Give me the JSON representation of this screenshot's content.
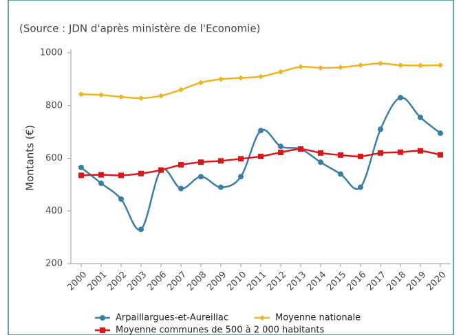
{
  "chart_data": {
    "type": "line",
    "title": "(Source : JDN d'après ministère de l'Economie)",
    "y_label": "Montants (€)",
    "categories": [
      "2000",
      "2001",
      "2002",
      "2003",
      "2006",
      "2007",
      "2008",
      "2009",
      "2010",
      "2011",
      "2012",
      "2013",
      "2014",
      "2015",
      "2016",
      "2017",
      "2018",
      "2019",
      "2020"
    ],
    "series": [
      {
        "name": "Arpaillargues-et-Aureillac",
        "color": "#3a7fa3",
        "marker": "circle",
        "values": [
          565,
          505,
          445,
          330,
          555,
          485,
          530,
          490,
          530,
          705,
          645,
          635,
          585,
          540,
          490,
          710,
          830,
          755,
          695
        ]
      },
      {
        "name": "Moyenne nationale",
        "color": "#f0b323",
        "marker": "diamond",
        "values": [
          843,
          840,
          833,
          828,
          837,
          860,
          887,
          900,
          905,
          910,
          928,
          947,
          943,
          945,
          953,
          960,
          953,
          952,
          953
        ]
      },
      {
        "name": "Moyenne communes de 500 à 2 000 habitants",
        "color": "#d7191c",
        "marker": "square",
        "values": [
          535,
          537,
          535,
          542,
          555,
          575,
          585,
          590,
          598,
          607,
          622,
          635,
          620,
          612,
          607,
          620,
          623,
          628,
          613
        ]
      }
    ],
    "ylim": [
      200,
      1000
    ],
    "yticks": [
      200,
      400,
      600,
      800,
      1000
    ],
    "grid": false
  }
}
